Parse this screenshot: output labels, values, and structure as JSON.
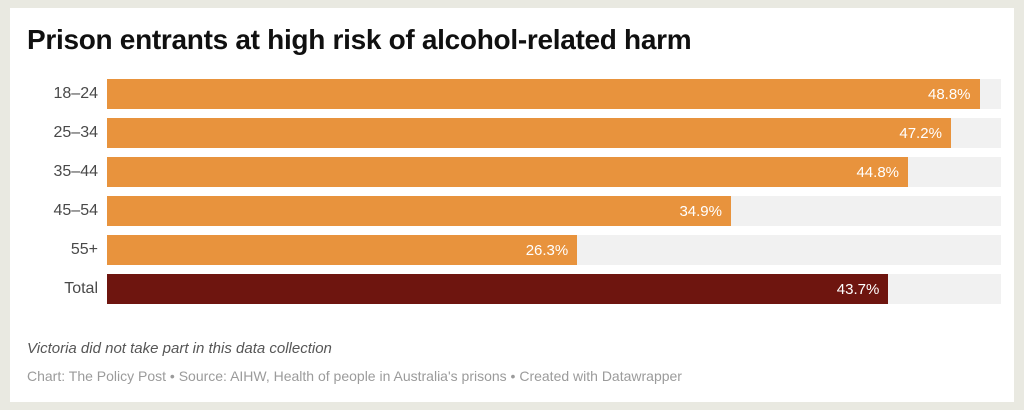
{
  "chart_data": {
    "type": "bar",
    "orientation": "horizontal",
    "title": "Prison entrants at high risk of alcohol-related harm",
    "categories": [
      "18–24",
      "25–34",
      "35–44",
      "45–54",
      "55+",
      "Total"
    ],
    "values": [
      48.8,
      47.2,
      44.8,
      34.9,
      26.3,
      43.7
    ],
    "value_labels": [
      "48.8%",
      "47.2%",
      "44.8%",
      "34.9%",
      "26.3%",
      "43.7%"
    ],
    "xlim": [
      0,
      50
    ],
    "xlabel": "",
    "ylabel": "",
    "grid": false,
    "legend": false,
    "bar_colors": [
      "#e8933d",
      "#e8933d",
      "#e8933d",
      "#e8933d",
      "#e8933d",
      "#6e150f"
    ],
    "track_color": "#f1f1f1",
    "value_label_color": "#ffffff"
  },
  "footer": {
    "note": "Victoria did not take part in this data collection",
    "attribution": "Chart: The Policy Post • Source: AIHW, Health of people in Australia's prisons • Created with Datawrapper"
  },
  "colors": {
    "page_background": "#e9e9e1",
    "card_background": "#ffffff",
    "title_text": "#101010",
    "category_label_text": "#494949",
    "footnote_text": "#565656",
    "attribution_text": "#9b9b9b"
  }
}
